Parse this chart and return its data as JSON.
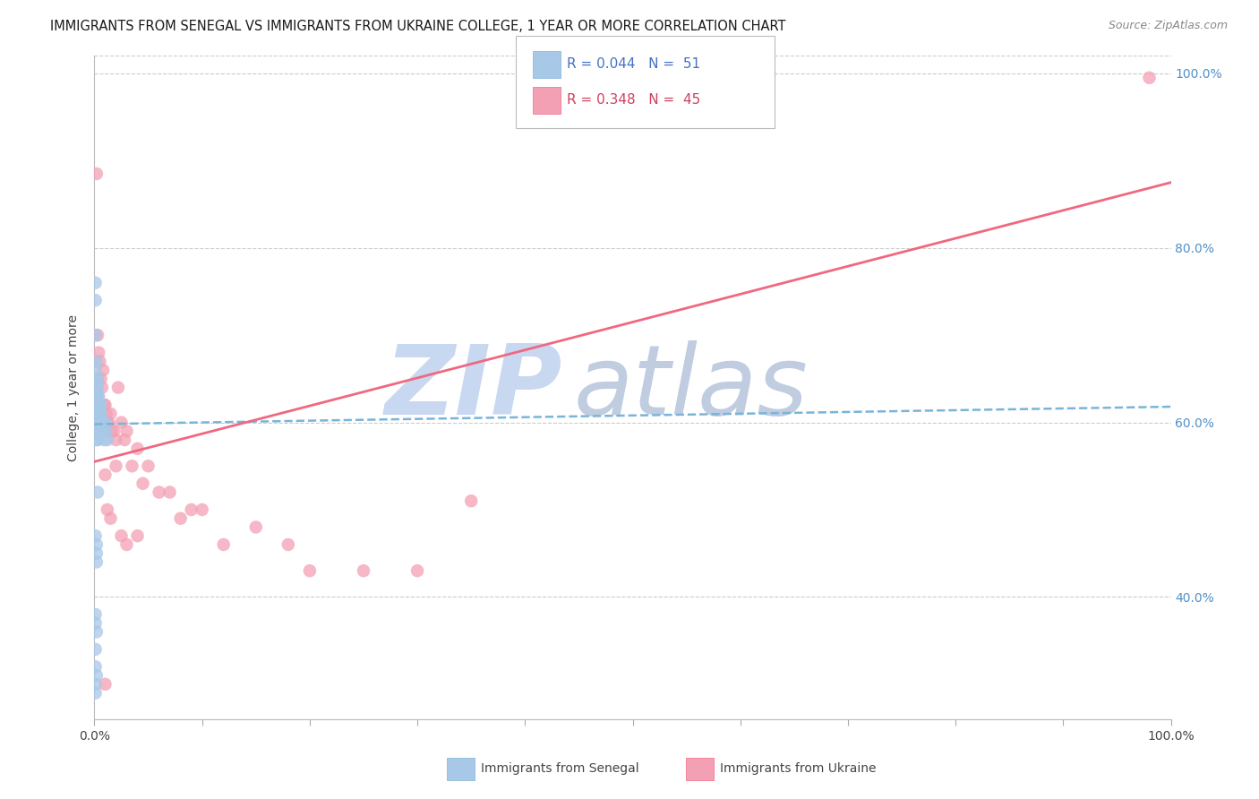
{
  "title": "IMMIGRANTS FROM SENEGAL VS IMMIGRANTS FROM UKRAINE COLLEGE, 1 YEAR OR MORE CORRELATION CHART",
  "source": "Source: ZipAtlas.com",
  "ylabel": "College, 1 year or more",
  "legend_label1": "Immigrants from Senegal",
  "legend_label2": "Immigrants from Ukraine",
  "r1": "0.044",
  "n1": "51",
  "r2": "0.348",
  "n2": "45",
  "color_senegal": "#a8c8e8",
  "color_ukraine": "#f4a0b4",
  "color_senegal_line": "#7ab4d8",
  "color_ukraine_line": "#f06880",
  "color_r1_text": "#4472c4",
  "color_r2_text": "#d04060",
  "color_right_axis": "#5090c8",
  "watermark_zip": "#c8d8f0",
  "watermark_atlas": "#c0cce0",
  "xlim": [
    0.0,
    1.0
  ],
  "ylim": [
    0.26,
    1.02
  ],
  "yticks": [
    0.4,
    0.6,
    0.8,
    1.0
  ],
  "ytick_labels": [
    "40.0%",
    "60.0%",
    "80.0%",
    "100.0%"
  ],
  "xtick_positions": [
    0.0,
    0.1,
    0.2,
    0.3,
    0.4,
    0.5,
    0.6,
    0.7,
    0.8,
    0.9,
    1.0
  ],
  "grid_yticks": [
    0.4,
    0.6,
    0.8,
    1.0
  ],
  "senegal_x": [
    0.001,
    0.001,
    0.001,
    0.001,
    0.002,
    0.002,
    0.002,
    0.002,
    0.002,
    0.002,
    0.002,
    0.002,
    0.002,
    0.003,
    0.003,
    0.003,
    0.003,
    0.003,
    0.003,
    0.003,
    0.003,
    0.004,
    0.004,
    0.004,
    0.004,
    0.005,
    0.005,
    0.005,
    0.006,
    0.006,
    0.007,
    0.007,
    0.008,
    0.008,
    0.009,
    0.01,
    0.011,
    0.012,
    0.001,
    0.002,
    0.002,
    0.002,
    0.003,
    0.001,
    0.001,
    0.002,
    0.001,
    0.001,
    0.002,
    0.001,
    0.001
  ],
  "senegal_y": [
    0.76,
    0.74,
    0.7,
    0.66,
    0.67,
    0.65,
    0.64,
    0.63,
    0.62,
    0.61,
    0.6,
    0.59,
    0.58,
    0.65,
    0.64,
    0.63,
    0.62,
    0.61,
    0.6,
    0.59,
    0.58,
    0.63,
    0.62,
    0.61,
    0.6,
    0.62,
    0.61,
    0.6,
    0.62,
    0.61,
    0.6,
    0.59,
    0.6,
    0.59,
    0.58,
    0.6,
    0.59,
    0.58,
    0.47,
    0.46,
    0.45,
    0.44,
    0.52,
    0.38,
    0.37,
    0.36,
    0.34,
    0.32,
    0.31,
    0.3,
    0.29
  ],
  "ukraine_x": [
    0.002,
    0.003,
    0.004,
    0.005,
    0.006,
    0.007,
    0.008,
    0.009,
    0.01,
    0.011,
    0.012,
    0.013,
    0.015,
    0.016,
    0.018,
    0.02,
    0.022,
    0.025,
    0.028,
    0.03,
    0.035,
    0.04,
    0.045,
    0.05,
    0.06,
    0.07,
    0.08,
    0.09,
    0.1,
    0.12,
    0.15,
    0.18,
    0.2,
    0.25,
    0.3,
    0.35,
    0.01,
    0.015,
    0.02,
    0.025,
    0.03,
    0.04,
    0.012,
    0.01,
    0.98
  ],
  "ukraine_y": [
    0.885,
    0.7,
    0.68,
    0.67,
    0.65,
    0.64,
    0.66,
    0.62,
    0.62,
    0.61,
    0.6,
    0.6,
    0.61,
    0.59,
    0.59,
    0.58,
    0.64,
    0.6,
    0.58,
    0.59,
    0.55,
    0.57,
    0.53,
    0.55,
    0.52,
    0.52,
    0.49,
    0.5,
    0.5,
    0.46,
    0.48,
    0.46,
    0.43,
    0.43,
    0.43,
    0.51,
    0.54,
    0.49,
    0.55,
    0.47,
    0.46,
    0.47,
    0.5,
    0.3,
    0.995
  ],
  "senegal_line_y0": 0.598,
  "senegal_line_y1": 0.618,
  "ukraine_line_y0": 0.555,
  "ukraine_line_y1": 0.875
}
